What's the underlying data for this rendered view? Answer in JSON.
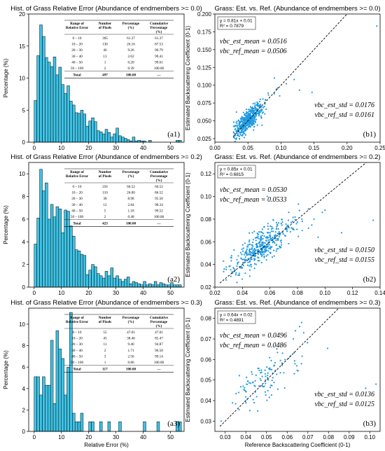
{
  "chart_data": [
    {
      "type": "bar",
      "title": "Hist. of Grass Relative Error (Abundance of endmembers >= 0.0)",
      "xlabel": "",
      "ylabel": "Percentage (%)",
      "xlim": [
        -2,
        55
      ],
      "ylim": [
        0,
        20
      ],
      "xticks": [
        0,
        10,
        20,
        30,
        40,
        50
      ],
      "yticks": [
        0,
        5,
        10,
        15,
        20
      ],
      "panel_label": "(a1)",
      "color": "#3ec3e6",
      "bin_width": 1,
      "bins_start": 0,
      "values": [
        6.5,
        13.5,
        18.3,
        16.5,
        13.2,
        12.5,
        11.8,
        13.3,
        10.5,
        11.7,
        9.0,
        7.6,
        8.8,
        6.4,
        5.8,
        4.6,
        4.5,
        5.0,
        4.4,
        2.5,
        3.3,
        3.8,
        3.2,
        1.8,
        1.6,
        1.3,
        2.0,
        1.5,
        0.8,
        1.3,
        2.2,
        1.0,
        0.8,
        0.6,
        0.4,
        0.2,
        0.8,
        0.2,
        0.3,
        0.2,
        0.2,
        0,
        0.3,
        0,
        0,
        0,
        0,
        0,
        0,
        0,
        0,
        0,
        0.3,
        0.3
      ],
      "table": {
        "headers": [
          "Range of Relative Error",
          "Number of Pixels",
          "Percentage (%)",
          "Cumulative Percentage (%)"
        ],
        "rows": [
          [
            "0 – 10",
            "305",
            "61.37",
            "61.37"
          ],
          [
            "10 – 20",
            "130",
            "26.16",
            "87.53"
          ],
          [
            "20 – 30",
            "46",
            "9.26",
            "96.79"
          ],
          [
            "30 – 40",
            "13",
            "2.62",
            "99.41"
          ],
          [
            "40 – 50",
            "1",
            "0.20",
            "99.61"
          ],
          [
            "50 – 100",
            "2",
            "0.39",
            "100.00"
          ]
        ],
        "total": [
          "Total",
          "497",
          "100.00",
          "—"
        ]
      }
    },
    {
      "type": "scatter",
      "title": "Grass: Est. vs. Ref. (Abundance of endmembers >= 0.0)",
      "xlabel": "",
      "ylabel": "Estimated Backscattering Coefficient (0-1)",
      "xlim": [
        0.0,
        0.25
      ],
      "ylim": [
        0.02,
        0.2
      ],
      "xticks": [
        0.0,
        0.05,
        0.1,
        0.15,
        0.2,
        0.25
      ],
      "yticks": [
        0.025,
        0.05,
        0.075,
        0.1,
        0.125,
        0.15,
        0.175,
        0.2
      ],
      "panel_label": "(b1)",
      "color": "#1f9ae0",
      "fit_equation": "y = 0.81x + 0.01",
      "r2": "R² = 0.7879",
      "mean_lines": [
        "vbc_est_mean = 0.0516",
        "vbc_ref_mean = 0.0506"
      ],
      "std_lines": [
        "vbc_est_std = 0.0176",
        "vbc_ref_std = 0.0161"
      ],
      "points": {
        "n": 480,
        "x_mean": 0.0506,
        "x_std": 0.0161,
        "y_slope": 0.81,
        "y_intercept": 0.01,
        "x_min": 0.028
      },
      "outliers": [
        [
          0.245,
          0.183
        ],
        [
          0.12,
          0.108
        ],
        [
          0.108,
          0.102
        ],
        [
          0.095,
          0.096
        ],
        [
          0.128,
          0.093
        ],
        [
          0.147,
          0.09
        ],
        [
          0.09,
          0.11
        ],
        [
          0.098,
          0.085
        ]
      ]
    },
    {
      "type": "bar",
      "title": "Hist. of Grass Relative Error (Abundance of endmembers >= 0.2)",
      "xlabel": "",
      "ylabel": "Percentage (%)",
      "xlim": [
        -2,
        55
      ],
      "ylim": [
        0,
        11
      ],
      "xticks": [
        0,
        10,
        20,
        30,
        40,
        50
      ],
      "yticks": [
        0,
        2,
        4,
        6,
        8,
        10
      ],
      "panel_label": "(a2)",
      "color": "#3ec3e6",
      "bin_width": 1,
      "bins_start": 0,
      "values": [
        3.8,
        6.1,
        10.4,
        8.5,
        9.2,
        6.0,
        7.3,
        6.2,
        7.1,
        6.9,
        4.8,
        6.8,
        6.7,
        5.4,
        4.5,
        3.3,
        3.2,
        2.9,
        2.8,
        1.1,
        1.5,
        2.0,
        1.8,
        1.2,
        1.0,
        0.8,
        1.4,
        1.0,
        1.7,
        0.8,
        1.0,
        0.7,
        0.5,
        0.7,
        0.9,
        0.3,
        0.5,
        0.4,
        0.3,
        0.2,
        0.5,
        0.2,
        0.3,
        0.2,
        0.5,
        0.2,
        0.4,
        0.3,
        0.2,
        0.2,
        0.4,
        0.2,
        0.2,
        0.2
      ],
      "table": {
        "headers": [
          "Range of Relative Error",
          "Number of Pixels",
          "Percentage (%)",
          "Cumulative Percentage (%)"
        ],
        "rows": [
          [
            "0 – 10",
            "256",
            "60.52",
            "60.52"
          ],
          [
            "10 – 20",
            "110",
            "26.00",
            "86.52"
          ],
          [
            "20 – 30",
            "38",
            "8.98",
            "95.50"
          ],
          [
            "30 – 40",
            "12",
            "2.84",
            "98.34"
          ],
          [
            "40 – 50",
            "5",
            "1.18",
            "99.52"
          ],
          [
            "50 – 100",
            "2",
            "0.48",
            "100.00"
          ]
        ],
        "total": [
          "Total",
          "423",
          "100.00",
          "—"
        ]
      }
    },
    {
      "type": "scatter",
      "title": "Grass: Est. vs. Ref. (Abundance of endmembers >= 0.2)",
      "xlabel": "",
      "ylabel": "Estimated Backscattering Coefficient (0-1)",
      "xlim": [
        0.02,
        0.14
      ],
      "ylim": [
        0.02,
        0.13
      ],
      "xticks": [
        0.02,
        0.04,
        0.06,
        0.08,
        0.1,
        0.12,
        0.14
      ],
      "yticks": [
        0.02,
        0.04,
        0.06,
        0.08,
        0.1,
        0.12
      ],
      "panel_label": "(b2)",
      "color": "#1f9ae0",
      "fit_equation": "y = 0.85x + 0.01",
      "r2": "R² = 0.6815",
      "mean_lines": [
        "vbc_est_mean = 0.0530",
        "vbc_ref_mean = 0.0533"
      ],
      "std_lines": [
        "vbc_est_std = 0.0150",
        "vbc_ref_std = 0.0155"
      ],
      "points": {
        "n": 420,
        "x_mean": 0.0533,
        "x_std": 0.0155,
        "y_slope": 0.85,
        "y_intercept": 0.01,
        "x_min": 0.026
      },
      "outliers": [
        [
          0.135,
          0.079
        ],
        [
          0.1,
          0.088
        ],
        [
          0.098,
          0.086
        ],
        [
          0.092,
          0.08
        ],
        [
          0.088,
          0.072
        ],
        [
          0.112,
          0.068
        ],
        [
          0.095,
          0.064
        ],
        [
          0.058,
          0.1
        ]
      ]
    },
    {
      "type": "bar",
      "title": "Hist. of Grass Relative Error (Abundance of endmembers >= 0.3)",
      "xlabel": "Relative Error (%)",
      "ylabel": "Percentage (%)",
      "xlim": [
        -2,
        55
      ],
      "ylim": [
        0,
        11.5
      ],
      "xticks": [
        0,
        10,
        20,
        30,
        40,
        50
      ],
      "yticks": [
        0,
        2,
        4,
        6,
        8,
        10
      ],
      "panel_label": "(a3)",
      "color": "#3ec3e6",
      "bin_width": 1,
      "bins_start": 0,
      "values": [
        5.1,
        5.1,
        3.4,
        5.1,
        4.3,
        4.3,
        8.5,
        2.6,
        9.4,
        7.7,
        6.8,
        3.4,
        6.0,
        11.1,
        1.7,
        0.9,
        0.9,
        1.7,
        0,
        0,
        0.9,
        0.9,
        0,
        0,
        0.9,
        0,
        0,
        0.9,
        0,
        0,
        0,
        0.9,
        0,
        0,
        0,
        0,
        0,
        0,
        0,
        0,
        0.9,
        0,
        0,
        0,
        0,
        0.9,
        0,
        0,
        0,
        0,
        0,
        0,
        0.9,
        0.9
      ],
      "table": {
        "headers": [
          "Range of Relative Error",
          "Number of Pixels",
          "Percentage (%)",
          "Cumulative Percentage (%)"
        ],
        "rows": [
          [
            "0 – 10",
            "55",
            "47.01",
            "47.01"
          ],
          [
            "10 – 20",
            "45",
            "38.46",
            "85.47"
          ],
          [
            "20 – 30",
            "11",
            "9.40",
            "94.87"
          ],
          [
            "30 – 40",
            "2",
            "1.71",
            "96.58"
          ],
          [
            "40 – 50",
            "3",
            "2.56",
            "99.14"
          ],
          [
            "50 – 100",
            "1",
            "0.86",
            "100.00"
          ]
        ],
        "total": [
          "Total",
          "117",
          "100.00",
          "—"
        ]
      }
    },
    {
      "type": "scatter",
      "title": "Grass: Est. vs. Ref. (Abundance of endmembers >= 0.3)",
      "xlabel": "Reference Backscattering Coefficient (0-1)",
      "ylabel": "Estimated Backscattering Coefficient (0-1)",
      "xlim": [
        0.025,
        0.105
      ],
      "ylim": [
        0.025,
        0.085
      ],
      "xticks": [
        0.03,
        0.04,
        0.05,
        0.06,
        0.07,
        0.08,
        0.09,
        0.1
      ],
      "yticks": [
        0.03,
        0.04,
        0.05,
        0.06,
        0.07,
        0.08
      ],
      "panel_label": "(b3)",
      "color": "#1f9ae0",
      "fit_equation": "y = 0.64x + 0.02",
      "r2": "R² = 0.4891",
      "mean_lines": [
        "vbc_est_mean = 0.0496",
        "vbc_ref_mean = 0.0486"
      ],
      "std_lines": [
        "vbc_est_std = 0.0136",
        "vbc_ref_std = 0.0125"
      ],
      "points": {
        "n": 110,
        "x_mean": 0.0486,
        "x_std": 0.0125,
        "y_slope": 0.64,
        "y_intercept": 0.02,
        "x_min": 0.028
      },
      "outliers": [
        [
          0.103,
          0.048
        ],
        [
          0.098,
          0.046
        ],
        [
          0.067,
          0.078
        ],
        [
          0.066,
          0.076
        ],
        [
          0.064,
          0.074
        ],
        [
          0.068,
          0.073
        ],
        [
          0.063,
          0.07
        ],
        [
          0.028,
          0.03
        ]
      ]
    }
  ]
}
